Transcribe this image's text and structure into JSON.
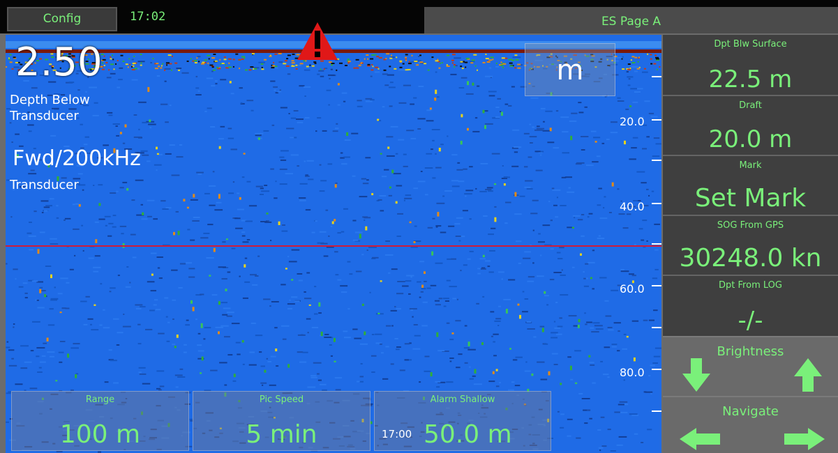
{
  "topbar": {
    "config_label": "Config",
    "time": "17:02",
    "page_title": "ES Page A"
  },
  "echogram": {
    "depth_value": "2.50",
    "depth_label_1": "Depth Below",
    "depth_label_2": "Transducer",
    "freq_value": "Fwd/200kHz",
    "freq_label": "Transducer",
    "unit": "m",
    "depth_ticks": [
      "20.0",
      "40.0",
      "60.0",
      "80.0"
    ],
    "bottom_time": "17:00"
  },
  "overlays": [
    {
      "title": "Range",
      "value": "100 m"
    },
    {
      "title": "Pic Speed",
      "value": "5 min"
    },
    {
      "title": "Alarm Shallow",
      "value": "50.0 m"
    }
  ],
  "side": {
    "items": [
      {
        "title": "Dpt Blw Surface",
        "value": "22.5 m"
      },
      {
        "title": "Draft",
        "value": "20.0 m"
      },
      {
        "title": "Mark",
        "value": "Set Mark"
      },
      {
        "title": "SOG From GPS",
        "value": "30248.0 kn"
      },
      {
        "title": "Dpt From LOG",
        "value": "-/-"
      }
    ],
    "brightness_label": "Brightness",
    "navigate_label": "Navigate"
  },
  "icons": {
    "warning": "warning-triangle-icon",
    "down": "arrow-down-icon",
    "up": "arrow-up-icon",
    "left": "arrow-left-icon",
    "right": "arrow-right-icon"
  },
  "colors": {
    "accent": "#7af07a",
    "echo_bg": "#1f6be6",
    "alarm_line": "#d01c3a",
    "warning": "#e01818"
  }
}
